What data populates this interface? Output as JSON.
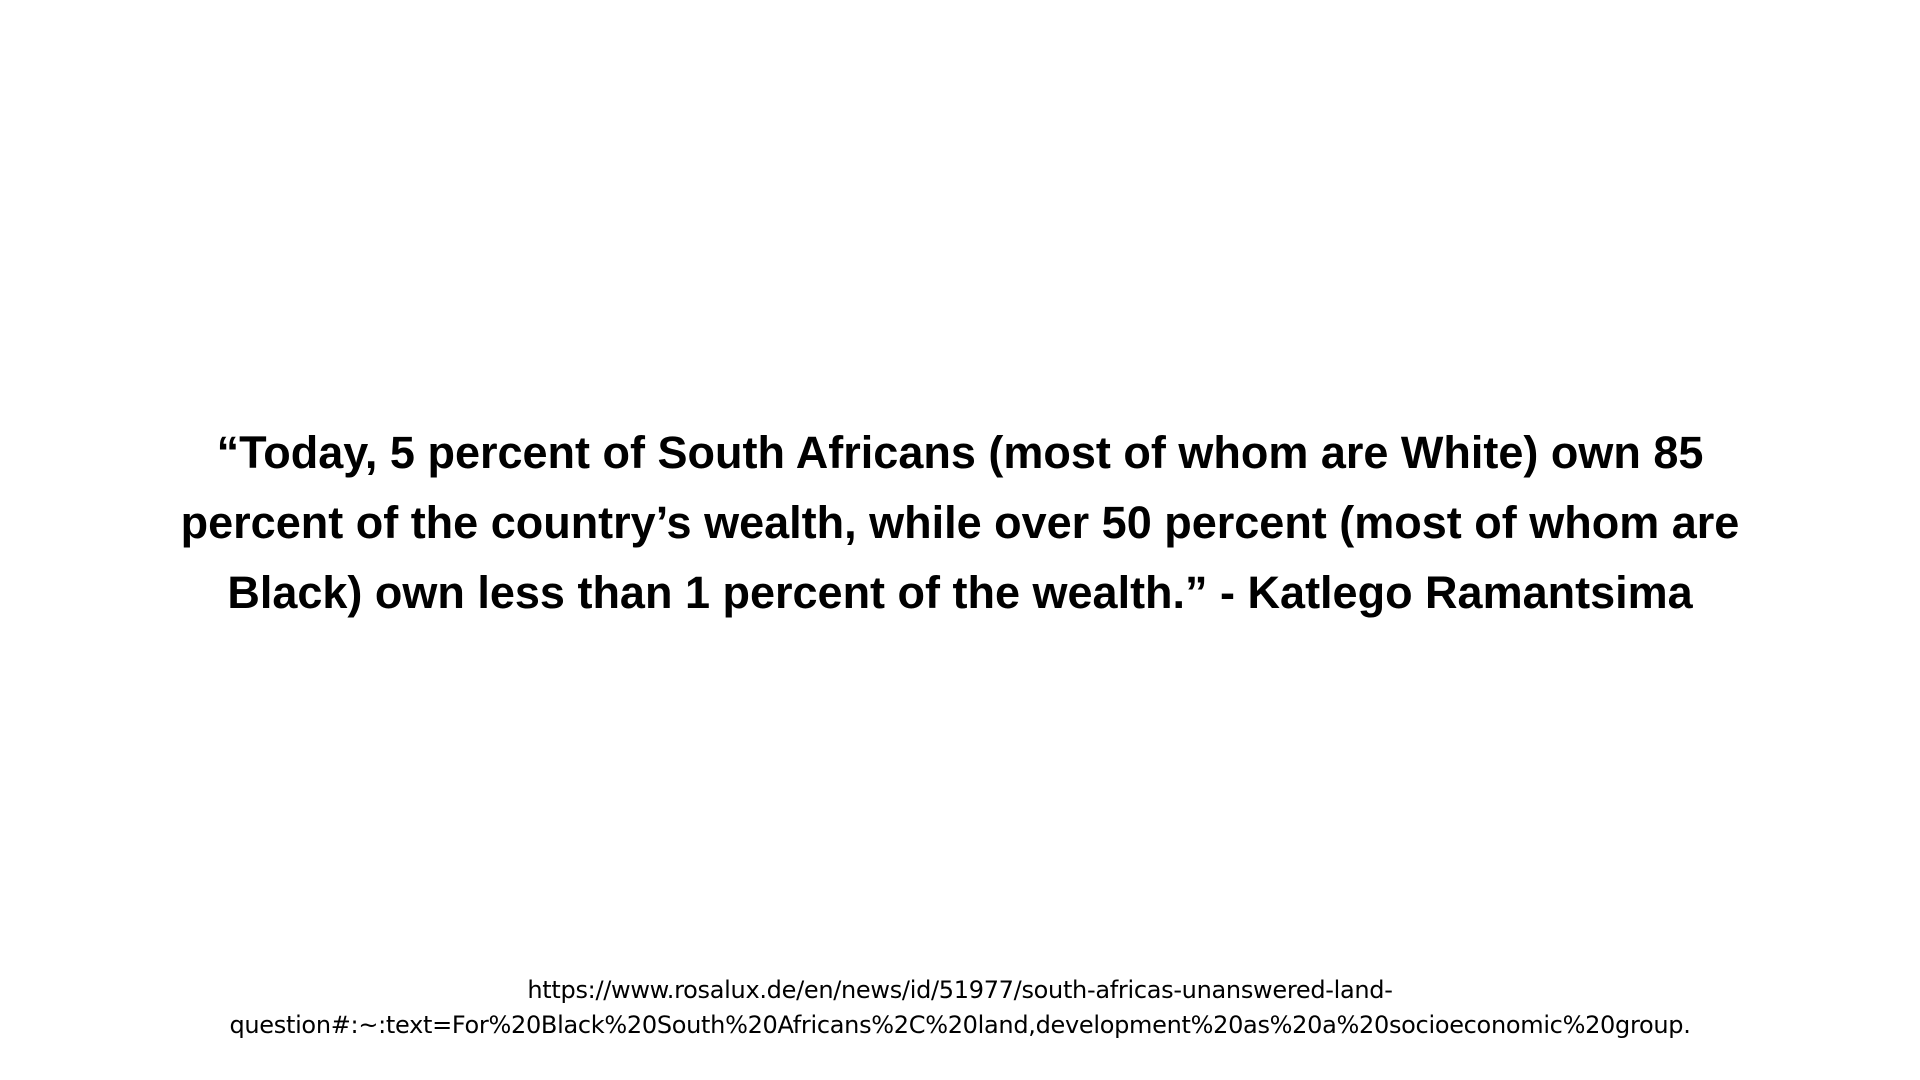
{
  "quote": {
    "lines": [
      "“Today, 5 percent of South Africans (most of whom are White) own 85",
      "percent of the country’s wealth, while over 50 percent (most of whom are",
      "Black) own less than 1 percent of the wealth.” - Katlego Ramantsima"
    ]
  },
  "source": {
    "lines": [
      "https://www.rosalux.de/en/news/id/51977/south-africas-unanswered-land-",
      "question#:~:text=For%20Black%20South%20Africans%2C%20land,development%20as%20a%20socioeconomic%20group."
    ]
  }
}
